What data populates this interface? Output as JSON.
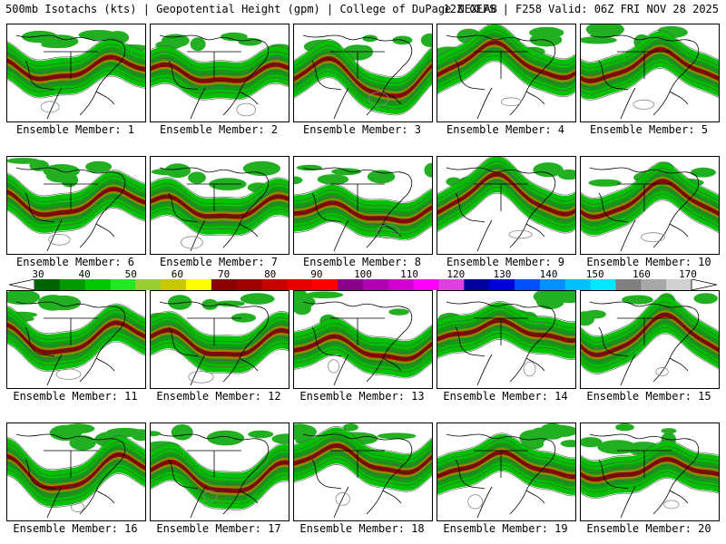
{
  "header": {
    "left": "500mb Isotachs (kts) | Geopotential Height (gpm) | College of DuPage NEXLAB",
    "right": "12Z GEFS | F258 Valid: 06Z FRI NOV 28 2025"
  },
  "colorbar": {
    "labels": [
      "30",
      "40",
      "50",
      "60",
      "70",
      "80",
      "90",
      "100",
      "110",
      "120",
      "130",
      "140",
      "150",
      "160",
      "170"
    ],
    "colors": [
      "#006400",
      "#009a00",
      "#00c800",
      "#22e822",
      "#9acd32",
      "#c8c800",
      "#ffff00",
      "#8b0000",
      "#a00000",
      "#c80000",
      "#e80000",
      "#ff0000",
      "#8b008b",
      "#b000b0",
      "#d000d0",
      "#ff00ff",
      "#e040e0",
      "#0000a0",
      "#0000d8",
      "#0050ff",
      "#0090ff",
      "#00c0ff",
      "#00e8ff",
      "#808080",
      "#a8a8a8",
      "#d0d0d0"
    ]
  },
  "icons": {
    "panel_map": "map-icon"
  },
  "members": [
    {
      "label": "Ensemble Member: 1"
    },
    {
      "label": "Ensemble Member: 2"
    },
    {
      "label": "Ensemble Member: 3"
    },
    {
      "label": "Ensemble Member: 4"
    },
    {
      "label": "Ensemble Member: 5"
    },
    {
      "label": "Ensemble Member: 6"
    },
    {
      "label": "Ensemble Member: 7"
    },
    {
      "label": "Ensemble Member: 8"
    },
    {
      "label": "Ensemble Member: 9"
    },
    {
      "label": "Ensemble Member: 10"
    },
    {
      "label": "Ensemble Member: 11"
    },
    {
      "label": "Ensemble Member: 12"
    },
    {
      "label": "Ensemble Member: 13"
    },
    {
      "label": "Ensemble Member: 14"
    },
    {
      "label": "Ensemble Member: 15"
    },
    {
      "label": "Ensemble Member: 16"
    },
    {
      "label": "Ensemble Member: 17"
    },
    {
      "label": "Ensemble Member: 18"
    },
    {
      "label": "Ensemble Member: 19"
    },
    {
      "label": "Ensemble Member: 20"
    }
  ]
}
